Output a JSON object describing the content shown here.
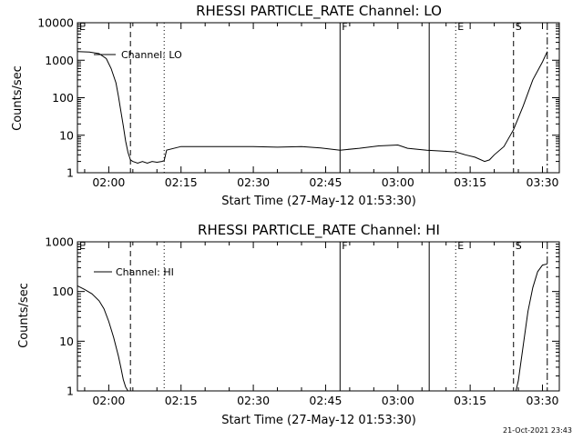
{
  "chart_data": [
    {
      "type": "line",
      "title": "RHESSI PARTICLE_RATE Channel: LO",
      "xlabel": "Start Time (27-May-12 01:53:30)",
      "ylabel": "Counts/sec",
      "yscale": "log",
      "ylim": [
        1,
        10000
      ],
      "xlim": [
        "01:53:30",
        "03:33:30"
      ],
      "x_ticks": [
        "02:00",
        "02:15",
        "02:30",
        "02:45",
        "03:00",
        "03:15",
        "03:30"
      ],
      "y_ticks": [
        "1",
        "10",
        "100",
        "1000",
        "10000"
      ],
      "legend": [
        "Channel: LO"
      ],
      "legend_position": "top-left",
      "markers": [
        {
          "label": "E",
          "time": "01:53:30",
          "style": "solid"
        },
        {
          "label": "",
          "time": "02:04:30",
          "style": "dashed"
        },
        {
          "label": "",
          "time": "02:11:30",
          "style": "dotted"
        },
        {
          "label": "F",
          "time": "02:48:00",
          "style": "solid"
        },
        {
          "label": "",
          "time": "03:06:30",
          "style": "solid"
        },
        {
          "label": "E",
          "time": "03:12:00",
          "style": "dotted"
        },
        {
          "label": "S",
          "time": "03:24:00",
          "style": "dashed"
        },
        {
          "label": "",
          "time": "03:31:00",
          "style": "dashdot"
        }
      ],
      "series": [
        {
          "name": "Channel: LO",
          "x": [
            "01:53:30",
            "01:56:00",
            "01:58:00",
            "01:59:30",
            "02:00:30",
            "02:01:30",
            "02:02:00",
            "02:02:30",
            "02:03:00",
            "02:03:30",
            "02:04:00",
            "02:04:30",
            "02:05:00",
            "02:06:00",
            "02:07:00",
            "02:08:00",
            "02:09:00",
            "02:10:00",
            "02:11:00",
            "02:11:30",
            "02:12:00",
            "02:15:00",
            "02:20:00",
            "02:25:00",
            "02:30:00",
            "02:35:00",
            "02:40:00",
            "02:44:00",
            "02:48:00",
            "02:52:00",
            "02:56:00",
            "03:00:00",
            "03:02:00",
            "03:06:00",
            "03:09:00",
            "03:12:00",
            "03:14:00",
            "03:16:00",
            "03:18:00",
            "03:19:00",
            "03:20:00",
            "03:22:00",
            "03:24:00",
            "03:26:00",
            "03:28:00",
            "03:30:00",
            "03:31:00"
          ],
          "y": [
            1700,
            1650,
            1500,
            1100,
            600,
            250,
            110,
            45,
            18,
            7,
            3.5,
            2.2,
            2,
            1.8,
            2,
            1.8,
            2,
            1.9,
            2,
            2.1,
            4,
            5,
            5,
            5,
            5,
            4.8,
            5,
            4.6,
            4,
            4.5,
            5.2,
            5.5,
            4.5,
            4,
            3.8,
            3.6,
            3,
            2.6,
            2,
            2.2,
            3,
            5,
            14,
            60,
            300,
            900,
            1700
          ]
        }
      ]
    },
    {
      "type": "line",
      "title": "RHESSI PARTICLE_RATE Channel: HI",
      "xlabel": "Start Time (27-May-12 01:53:30)",
      "ylabel": "Counts/sec",
      "yscale": "log",
      "ylim": [
        1,
        1000
      ],
      "xlim": [
        "01:53:30",
        "03:33:30"
      ],
      "x_ticks": [
        "02:00",
        "02:15",
        "02:30",
        "02:45",
        "03:00",
        "03:15",
        "03:30"
      ],
      "y_ticks": [
        "1",
        "10",
        "100",
        "1000"
      ],
      "legend": [
        "Channel: HI"
      ],
      "legend_position": "top-left",
      "markers": [
        {
          "label": "E",
          "time": "01:53:30",
          "style": "solid"
        },
        {
          "label": "",
          "time": "02:04:30",
          "style": "dashed"
        },
        {
          "label": "",
          "time": "02:11:30",
          "style": "dotted"
        },
        {
          "label": "F",
          "time": "02:48:00",
          "style": "solid"
        },
        {
          "label": "",
          "time": "03:06:30",
          "style": "solid"
        },
        {
          "label": "E",
          "time": "03:12:00",
          "style": "dotted"
        },
        {
          "label": "S",
          "time": "03:24:00",
          "style": "dashed"
        },
        {
          "label": "",
          "time": "03:31:00",
          "style": "dashdot"
        }
      ],
      "series": [
        {
          "name": "Channel: HI",
          "x": [
            "01:53:30",
            "01:55:00",
            "01:56:30",
            "01:58:00",
            "01:59:00",
            "02:00:00",
            "02:01:00",
            "02:02:00",
            "02:02:30",
            "02:03:00",
            "02:03:30",
            "02:04:00",
            "03:24:30",
            "03:25:00",
            "03:26:00",
            "03:27:00",
            "03:28:00",
            "03:29:00",
            "03:30:00",
            "03:31:00"
          ],
          "y": [
            130,
            110,
            90,
            65,
            45,
            25,
            12,
            5,
            3,
            1.7,
            1.2,
            1,
            1,
            1.6,
            8,
            40,
            120,
            250,
            340,
            360
          ]
        }
      ]
    }
  ],
  "timestamp": "21-Oct-2021 23:43"
}
